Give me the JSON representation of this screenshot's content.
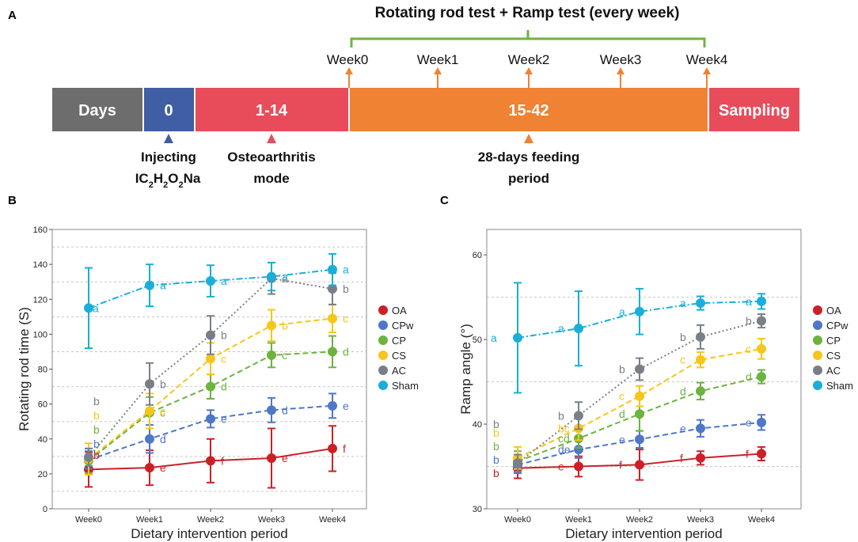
{
  "panel_a": {
    "letter": "A",
    "header": "Rotating rod test + Ramp test (every week)",
    "segments": [
      {
        "label": "Days",
        "color": "#6d6d6d"
      },
      {
        "label": "0",
        "color": "#3f5ea3"
      },
      {
        "label": "1-14",
        "color": "#e84c5b"
      },
      {
        "label": "15-42",
        "color": "#ef8233"
      },
      {
        "label": "Sampling",
        "color": "#e84c5b"
      }
    ],
    "weeks": [
      "Week0",
      "Week1",
      "Week2",
      "Week3",
      "Week4"
    ],
    "captions": {
      "injecting": "Injecting",
      "compound_base": "IC",
      "compound_parts": [
        {
          "sub": "2",
          "txt": "H"
        },
        {
          "sub": "2",
          "txt": "O"
        },
        {
          "sub": "2",
          "txt": "Na"
        }
      ],
      "oa_line1": "Osteoarthritis",
      "oa_line2": "mode",
      "feed_line1": "28-days feeding",
      "feed_line2": "period"
    },
    "marker_colors": {
      "blue": "#3f5ea3",
      "red": "#e84c5b",
      "orange": "#ef8233",
      "bracket": "#6db33f"
    }
  },
  "chart_data": [
    {
      "panel": "B",
      "type": "line",
      "title": "",
      "xlabel": "Dietary intervention period",
      "ylabel": "Rotating rod time (S)",
      "categories": [
        "Week0",
        "Week1",
        "Week2",
        "Week3",
        "Week4"
      ],
      "ylim": [
        0,
        160
      ],
      "yticks": [
        0,
        20,
        40,
        60,
        80,
        100,
        120,
        140,
        160
      ],
      "gridlines": [
        10,
        30,
        50,
        70,
        90,
        110,
        130,
        150
      ],
      "series": [
        {
          "name": "OA",
          "color": "#cc2027",
          "dash": "solid",
          "values": [
            22.5,
            23.5,
            27.5,
            29,
            34.5
          ],
          "err": [
            10,
            10,
            12.5,
            17,
            13
          ],
          "letters": [
            "b",
            "e",
            "f",
            "e",
            "f"
          ]
        },
        {
          "name": "CPw",
          "color": "#4f77c8",
          "dash": "dashed",
          "values": [
            28,
            40,
            51.5,
            56.5,
            59
          ],
          "err": [
            5,
            8,
            5,
            7,
            7
          ],
          "letters": [
            "b",
            "d",
            "e",
            "d",
            "e"
          ]
        },
        {
          "name": "CP",
          "color": "#6db33f",
          "dash": "dashed",
          "values": [
            27.5,
            55,
            70,
            88,
            90
          ],
          "err": [
            7,
            9,
            7,
            7,
            9
          ],
          "letters": [
            "b",
            "c",
            "d",
            "c",
            "d"
          ]
        },
        {
          "name": "CS",
          "color": "#f6c619",
          "dash": "dashed",
          "values": [
            28.5,
            56,
            86,
            105,
            109
          ],
          "err": [
            9,
            10,
            9,
            9,
            8
          ],
          "letters": [
            "b",
            "c",
            "c",
            "b",
            "c"
          ]
        },
        {
          "name": "AC",
          "color": "#7a7f86",
          "dash": "dotted",
          "values": [
            29.5,
            71.5,
            99.5,
            132,
            126
          ],
          "err": [
            5,
            12,
            11,
            9,
            9
          ],
          "letters": [
            "b",
            "b",
            "b",
            "a",
            "b"
          ]
        },
        {
          "name": "Sham",
          "color": "#1aaed8",
          "dash": "dashdot",
          "values": [
            115,
            128,
            130.5,
            133,
            137
          ],
          "err": [
            23,
            12,
            9,
            8,
            9
          ],
          "letters": [
            "a",
            "a",
            "a",
            "a",
            "a"
          ]
        }
      ]
    },
    {
      "panel": "C",
      "type": "line",
      "title": "",
      "xlabel": "Dietary intervention period",
      "ylabel": "Ramp angle (°)",
      "categories": [
        "Week0",
        "Week1",
        "Week2",
        "Week3",
        "Week4"
      ],
      "ylim": [
        30,
        63
      ],
      "yticks": [
        30,
        40,
        50,
        60
      ],
      "gridlines": [
        35,
        45,
        55
      ],
      "series": [
        {
          "name": "OA",
          "color": "#cc2027",
          "dash": "solid",
          "values": [
            34.8,
            35.0,
            35.2,
            36.0,
            36.5
          ],
          "err": [
            1.2,
            1.2,
            1.8,
            0.8,
            0.8
          ],
          "letters": [
            "b",
            "e",
            "f",
            "f",
            "f"
          ]
        },
        {
          "name": "CPw",
          "color": "#4f77c8",
          "dash": "dashed",
          "values": [
            35.2,
            37.0,
            38.2,
            39.5,
            40.2
          ],
          "err": [
            1.0,
            1.0,
            1.0,
            1.0,
            0.9
          ],
          "letters": [
            "b",
            "de",
            "e",
            "e",
            "e"
          ]
        },
        {
          "name": "CP",
          "color": "#6db33f",
          "dash": "dashed",
          "values": [
            35.6,
            38.3,
            41.2,
            43.9,
            45.6
          ],
          "err": [
            1.2,
            1.1,
            2.0,
            1.0,
            0.8
          ],
          "letters": [
            "b",
            "cd",
            "d",
            "d",
            "d"
          ]
        },
        {
          "name": "CS",
          "color": "#f6c619",
          "dash": "dashed",
          "values": [
            36.0,
            39.5,
            43.3,
            47.6,
            48.9
          ],
          "err": [
            1.3,
            1.4,
            1.2,
            0.9,
            1.2
          ],
          "letters": [
            "b",
            "bc",
            "c",
            "c",
            "c"
          ]
        },
        {
          "name": "AC",
          "color": "#7a7f86",
          "dash": "dotted",
          "values": [
            35.4,
            41.0,
            46.5,
            50.3,
            52.2
          ],
          "err": [
            1.0,
            1.6,
            1.3,
            1.4,
            0.8
          ],
          "letters": [
            "b",
            "b",
            "b",
            "b",
            "b"
          ]
        },
        {
          "name": "Sham",
          "color": "#1aaed8",
          "dash": "dashdot",
          "values": [
            50.2,
            51.3,
            53.3,
            54.3,
            54.5
          ],
          "err": [
            6.5,
            4.4,
            2.7,
            0.8,
            0.9
          ],
          "letters": [
            "a",
            "a",
            "a",
            "a",
            "a"
          ]
        }
      ]
    }
  ]
}
